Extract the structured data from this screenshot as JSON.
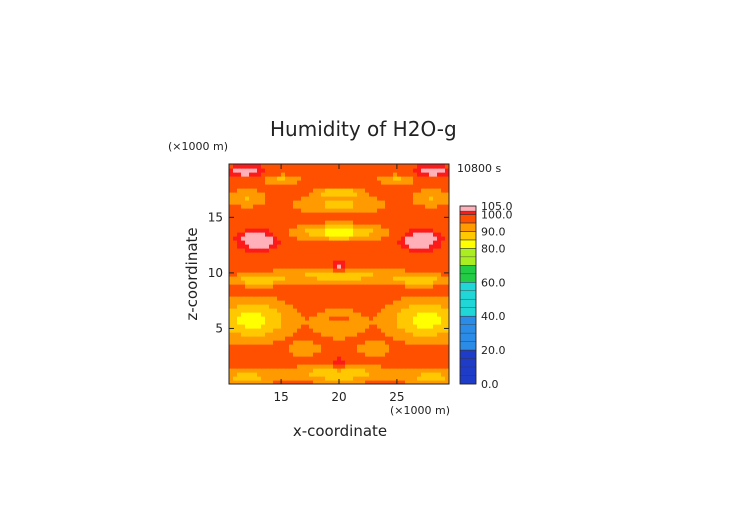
{
  "chart_data": {
    "type": "heatmap",
    "title": "Humidity of H2O-g",
    "xlabel": "x-coordinate",
    "ylabel": "z-coordinate",
    "x_unit_label": "(×1000 m)",
    "y_unit_label": "(×1000 m)",
    "time_label": "10800 s",
    "xlim": [
      10.5,
      29.5
    ],
    "ylim": [
      0,
      19.8
    ],
    "x_ticks": [
      15,
      20,
      25
    ],
    "y_ticks": [
      5,
      10,
      15
    ],
    "colorbar": {
      "labels": [
        "105.0",
        "100.0",
        "90.0",
        "80.0",
        "60.0",
        "40.0",
        "20.0",
        "0.0"
      ],
      "label_values": [
        105,
        100,
        90,
        80,
        60,
        40,
        20,
        0
      ],
      "range": [
        0,
        105
      ],
      "levels": [
        {
          "from": 0,
          "to": 20,
          "color": "#1f3cc8"
        },
        {
          "from": 20,
          "to": 40,
          "color": "#2a8ce6"
        },
        {
          "from": 40,
          "to": 60,
          "color": "#20d6d6"
        },
        {
          "from": 60,
          "to": 70,
          "color": "#22cc44"
        },
        {
          "from": 70,
          "to": 80,
          "color": "#aaee22"
        },
        {
          "from": 80,
          "to": 85,
          "color": "#ffff00"
        },
        {
          "from": 85,
          "to": 90,
          "color": "#ffc800"
        },
        {
          "from": 90,
          "to": 95,
          "color": "#ff9a00"
        },
        {
          "from": 95,
          "to": 100,
          "color": "#ff5000"
        },
        {
          "from": 100,
          "to": 102,
          "color": "#ff1a1a"
        },
        {
          "from": 102,
          "to": 105,
          "color": "#ffb0b8"
        }
      ]
    },
    "field": {
      "base": 98,
      "features": [
        {
          "cx": 12.5,
          "cz": 5.8,
          "sx": 3.2,
          "sz": 1.8,
          "a": -15
        },
        {
          "cx": 27.5,
          "cz": 5.8,
          "sx": 3.2,
          "sz": 1.8,
          "a": -15
        },
        {
          "cx": 20,
          "cz": 5.5,
          "sx": 2.2,
          "sz": 1.5,
          "a": -7
        },
        {
          "cx": 20,
          "cz": 1.0,
          "sx": 4.0,
          "sz": 0.8,
          "a": -12
        },
        {
          "cx": 12,
          "cz": 0.6,
          "sx": 2.2,
          "sz": 0.8,
          "a": -10
        },
        {
          "cx": 28,
          "cz": 0.6,
          "sx": 2.2,
          "sz": 0.8,
          "a": -10
        },
        {
          "cx": 17,
          "cz": 3.2,
          "sx": 1.3,
          "sz": 0.6,
          "a": -8
        },
        {
          "cx": 23,
          "cz": 3.2,
          "sx": 1.3,
          "sz": 0.6,
          "a": -8
        },
        {
          "cx": 20,
          "cz": 9.8,
          "sx": 6.0,
          "sz": 0.7,
          "a": -10
        },
        {
          "cx": 13,
          "cz": 9.4,
          "sx": 2.2,
          "sz": 0.5,
          "a": -10
        },
        {
          "cx": 27,
          "cz": 9.4,
          "sx": 2.2,
          "sz": 0.5,
          "a": -10
        },
        {
          "cx": 20,
          "cz": 13.7,
          "sx": 3.5,
          "sz": 0.7,
          "a": -16
        },
        {
          "cx": 20,
          "cz": 16.2,
          "sx": 4.0,
          "sz": 0.8,
          "a": -9
        },
        {
          "cx": 20,
          "cz": 17.3,
          "sx": 2.0,
          "sz": 0.4,
          "a": -12
        },
        {
          "cx": 15,
          "cz": 18.4,
          "sx": 1.6,
          "sz": 0.5,
          "a": -9
        },
        {
          "cx": 25,
          "cz": 18.4,
          "sx": 1.6,
          "sz": 0.5,
          "a": -9
        },
        {
          "cx": 12,
          "cz": 16.8,
          "sx": 1.6,
          "sz": 0.8,
          "a": -8
        },
        {
          "cx": 28,
          "cz": 16.8,
          "sx": 1.6,
          "sz": 0.8,
          "a": -8
        },
        {
          "cx": 13,
          "cz": 13.0,
          "sx": 1.8,
          "sz": 1.0,
          "a": 7
        },
        {
          "cx": 27,
          "cz": 13.0,
          "sx": 1.8,
          "sz": 1.0,
          "a": 7
        },
        {
          "cx": 20,
          "cz": 1.8,
          "sx": 0.8,
          "sz": 0.6,
          "a": 7
        },
        {
          "cx": 20,
          "cz": 10.6,
          "sx": 0.9,
          "sz": 0.5,
          "a": 7
        },
        {
          "cx": 20,
          "cz": 5.9,
          "sx": 0.9,
          "sz": 0.4,
          "a": 6
        },
        {
          "cx": 12,
          "cz": 19.2,
          "sx": 1.8,
          "sz": 0.5,
          "a": 6
        },
        {
          "cx": 28,
          "cz": 19.2,
          "sx": 1.8,
          "sz": 0.5,
          "a": 6
        }
      ]
    }
  }
}
